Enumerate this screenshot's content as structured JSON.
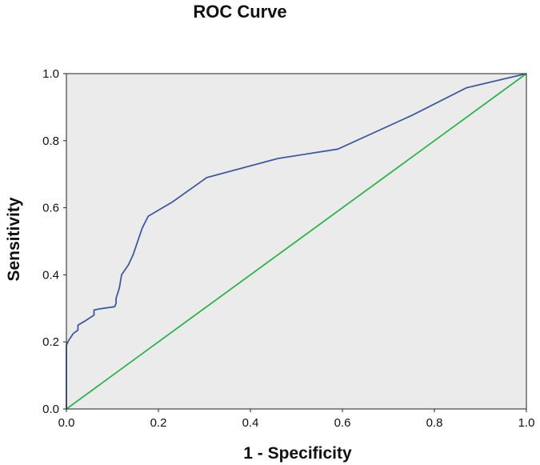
{
  "chart_data": {
    "type": "line",
    "title": "ROC Curve",
    "xlabel": "1 - Specificity",
    "ylabel": "Sensitivity",
    "xlim": [
      0,
      1
    ],
    "ylim": [
      0,
      1
    ],
    "x_ticks": [
      "0.0",
      "0.2",
      "0.4",
      "0.6",
      "0.8",
      "1.0"
    ],
    "y_ticks": [
      "0.0",
      "0.2",
      "0.4",
      "0.6",
      "0.8",
      "1.0"
    ],
    "grid": false,
    "plot_background": "#ebebeb",
    "series": [
      {
        "color": "#3f5a9e",
        "points": [
          [
            0.0,
            0.0
          ],
          [
            0.0,
            0.19
          ],
          [
            0.005,
            0.205
          ],
          [
            0.01,
            0.215
          ],
          [
            0.015,
            0.225
          ],
          [
            0.025,
            0.235
          ],
          [
            0.025,
            0.25
          ],
          [
            0.04,
            0.262
          ],
          [
            0.06,
            0.28
          ],
          [
            0.06,
            0.295
          ],
          [
            0.07,
            0.298
          ],
          [
            0.105,
            0.305
          ],
          [
            0.108,
            0.315
          ],
          [
            0.108,
            0.33
          ],
          [
            0.115,
            0.36
          ],
          [
            0.12,
            0.4
          ],
          [
            0.135,
            0.43
          ],
          [
            0.145,
            0.46
          ],
          [
            0.155,
            0.5
          ],
          [
            0.165,
            0.54
          ],
          [
            0.178,
            0.575
          ],
          [
            0.23,
            0.617
          ],
          [
            0.305,
            0.69
          ],
          [
            0.46,
            0.747
          ],
          [
            0.59,
            0.775
          ],
          [
            0.75,
            0.875
          ],
          [
            0.87,
            0.958
          ],
          [
            1.0,
            1.0
          ]
        ]
      },
      {
        "color": "#2db34a",
        "points": [
          [
            0,
            0
          ],
          [
            1,
            1
          ]
        ]
      }
    ]
  }
}
